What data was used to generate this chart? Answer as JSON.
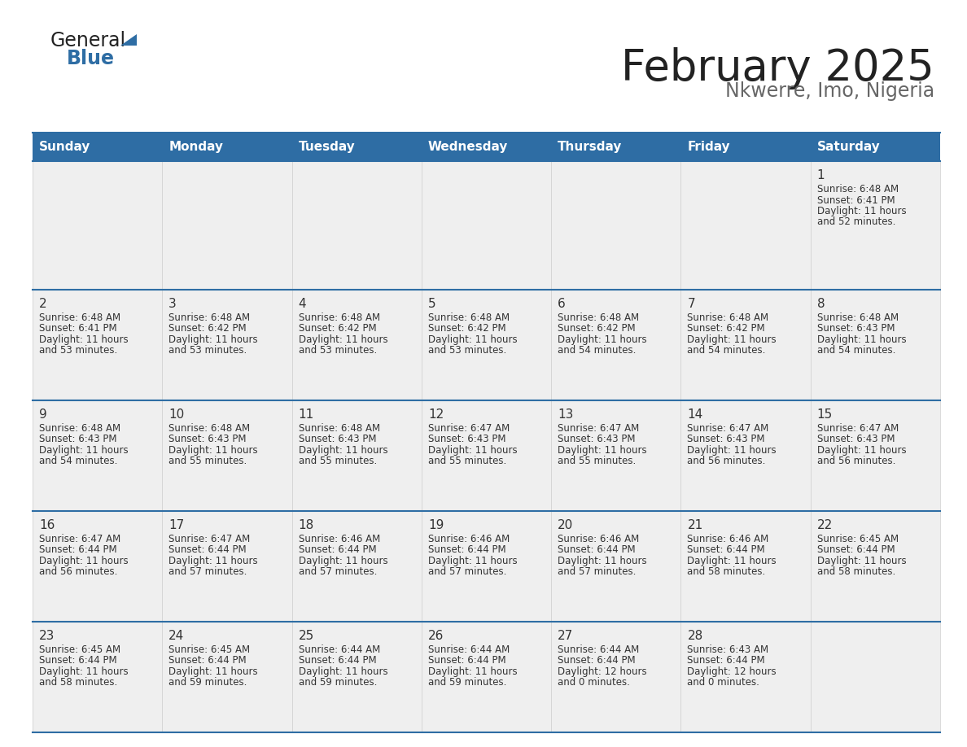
{
  "title": "February 2025",
  "subtitle": "Nkwerre, Imo, Nigeria",
  "header_bg": "#2E6DA4",
  "header_text": "#FFFFFF",
  "row_bg": "#EFEFEF",
  "cell_text": "#333333",
  "border_color": "#2E6DA4",
  "day_headers": [
    "Sunday",
    "Monday",
    "Tuesday",
    "Wednesday",
    "Thursday",
    "Friday",
    "Saturday"
  ],
  "title_color": "#222222",
  "subtitle_color": "#666666",
  "logo_general_color": "#222222",
  "logo_blue_color": "#2E6DA4",
  "days": [
    {
      "day": 1,
      "col": 6,
      "row": 0,
      "sunrise": "6:48 AM",
      "sunset": "6:41 PM",
      "daylight_h": "11 hours",
      "daylight_m": "52 minutes"
    },
    {
      "day": 2,
      "col": 0,
      "row": 1,
      "sunrise": "6:48 AM",
      "sunset": "6:41 PM",
      "daylight_h": "11 hours",
      "daylight_m": "53 minutes"
    },
    {
      "day": 3,
      "col": 1,
      "row": 1,
      "sunrise": "6:48 AM",
      "sunset": "6:42 PM",
      "daylight_h": "11 hours",
      "daylight_m": "53 minutes"
    },
    {
      "day": 4,
      "col": 2,
      "row": 1,
      "sunrise": "6:48 AM",
      "sunset": "6:42 PM",
      "daylight_h": "11 hours",
      "daylight_m": "53 minutes"
    },
    {
      "day": 5,
      "col": 3,
      "row": 1,
      "sunrise": "6:48 AM",
      "sunset": "6:42 PM",
      "daylight_h": "11 hours",
      "daylight_m": "53 minutes"
    },
    {
      "day": 6,
      "col": 4,
      "row": 1,
      "sunrise": "6:48 AM",
      "sunset": "6:42 PM",
      "daylight_h": "11 hours",
      "daylight_m": "54 minutes"
    },
    {
      "day": 7,
      "col": 5,
      "row": 1,
      "sunrise": "6:48 AM",
      "sunset": "6:42 PM",
      "daylight_h": "11 hours",
      "daylight_m": "54 minutes"
    },
    {
      "day": 8,
      "col": 6,
      "row": 1,
      "sunrise": "6:48 AM",
      "sunset": "6:43 PM",
      "daylight_h": "11 hours",
      "daylight_m": "54 minutes"
    },
    {
      "day": 9,
      "col": 0,
      "row": 2,
      "sunrise": "6:48 AM",
      "sunset": "6:43 PM",
      "daylight_h": "11 hours",
      "daylight_m": "54 minutes"
    },
    {
      "day": 10,
      "col": 1,
      "row": 2,
      "sunrise": "6:48 AM",
      "sunset": "6:43 PM",
      "daylight_h": "11 hours",
      "daylight_m": "55 minutes"
    },
    {
      "day": 11,
      "col": 2,
      "row": 2,
      "sunrise": "6:48 AM",
      "sunset": "6:43 PM",
      "daylight_h": "11 hours",
      "daylight_m": "55 minutes"
    },
    {
      "day": 12,
      "col": 3,
      "row": 2,
      "sunrise": "6:47 AM",
      "sunset": "6:43 PM",
      "daylight_h": "11 hours",
      "daylight_m": "55 minutes"
    },
    {
      "day": 13,
      "col": 4,
      "row": 2,
      "sunrise": "6:47 AM",
      "sunset": "6:43 PM",
      "daylight_h": "11 hours",
      "daylight_m": "55 minutes"
    },
    {
      "day": 14,
      "col": 5,
      "row": 2,
      "sunrise": "6:47 AM",
      "sunset": "6:43 PM",
      "daylight_h": "11 hours",
      "daylight_m": "56 minutes"
    },
    {
      "day": 15,
      "col": 6,
      "row": 2,
      "sunrise": "6:47 AM",
      "sunset": "6:43 PM",
      "daylight_h": "11 hours",
      "daylight_m": "56 minutes"
    },
    {
      "day": 16,
      "col": 0,
      "row": 3,
      "sunrise": "6:47 AM",
      "sunset": "6:44 PM",
      "daylight_h": "11 hours",
      "daylight_m": "56 minutes"
    },
    {
      "day": 17,
      "col": 1,
      "row": 3,
      "sunrise": "6:47 AM",
      "sunset": "6:44 PM",
      "daylight_h": "11 hours",
      "daylight_m": "57 minutes"
    },
    {
      "day": 18,
      "col": 2,
      "row": 3,
      "sunrise": "6:46 AM",
      "sunset": "6:44 PM",
      "daylight_h": "11 hours",
      "daylight_m": "57 minutes"
    },
    {
      "day": 19,
      "col": 3,
      "row": 3,
      "sunrise": "6:46 AM",
      "sunset": "6:44 PM",
      "daylight_h": "11 hours",
      "daylight_m": "57 minutes"
    },
    {
      "day": 20,
      "col": 4,
      "row": 3,
      "sunrise": "6:46 AM",
      "sunset": "6:44 PM",
      "daylight_h": "11 hours",
      "daylight_m": "57 minutes"
    },
    {
      "day": 21,
      "col": 5,
      "row": 3,
      "sunrise": "6:46 AM",
      "sunset": "6:44 PM",
      "daylight_h": "11 hours",
      "daylight_m": "58 minutes"
    },
    {
      "day": 22,
      "col": 6,
      "row": 3,
      "sunrise": "6:45 AM",
      "sunset": "6:44 PM",
      "daylight_h": "11 hours",
      "daylight_m": "58 minutes"
    },
    {
      "day": 23,
      "col": 0,
      "row": 4,
      "sunrise": "6:45 AM",
      "sunset": "6:44 PM",
      "daylight_h": "11 hours",
      "daylight_m": "58 minutes"
    },
    {
      "day": 24,
      "col": 1,
      "row": 4,
      "sunrise": "6:45 AM",
      "sunset": "6:44 PM",
      "daylight_h": "11 hours",
      "daylight_m": "59 minutes"
    },
    {
      "day": 25,
      "col": 2,
      "row": 4,
      "sunrise": "6:44 AM",
      "sunset": "6:44 PM",
      "daylight_h": "11 hours",
      "daylight_m": "59 minutes"
    },
    {
      "day": 26,
      "col": 3,
      "row": 4,
      "sunrise": "6:44 AM",
      "sunset": "6:44 PM",
      "daylight_h": "11 hours",
      "daylight_m": "59 minutes"
    },
    {
      "day": 27,
      "col": 4,
      "row": 4,
      "sunrise": "6:44 AM",
      "sunset": "6:44 PM",
      "daylight_h": "12 hours",
      "daylight_m": "0 minutes"
    },
    {
      "day": 28,
      "col": 5,
      "row": 4,
      "sunrise": "6:43 AM",
      "sunset": "6:44 PM",
      "daylight_h": "12 hours",
      "daylight_m": "0 minutes"
    }
  ]
}
